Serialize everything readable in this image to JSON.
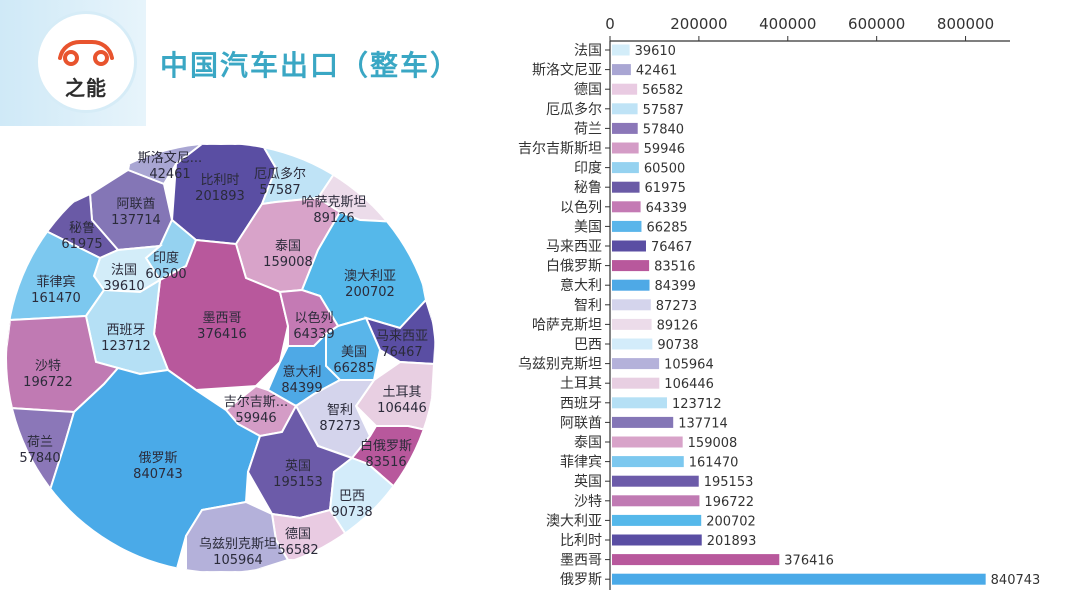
{
  "header": {
    "logo_text": "之能",
    "title": "中国汽车出口（整车）"
  },
  "colors": {
    "accent": "#3aa7c4",
    "header_band": "#cfe9f7"
  },
  "chart_data": [
    {
      "type": "voronoi-treemap",
      "title": "",
      "cells": [
        {
          "name": "斯洛文尼...",
          "value": 42461,
          "color": "#a9a6d3"
        },
        {
          "name": "比利时",
          "value": 201893,
          "color": "#5a4ea3"
        },
        {
          "name": "厄瓜多尔",
          "value": 57587,
          "color": "#bfe3f6"
        },
        {
          "name": "哈萨克斯坦",
          "value": 89126,
          "color": "#ecdcea"
        },
        {
          "name": "阿联酋",
          "value": 137714,
          "color": "#8476b6"
        },
        {
          "name": "秘鲁",
          "value": 61975,
          "color": "#6a5aa6"
        },
        {
          "name": "印度",
          "value": 60500,
          "color": "#95d2f0"
        },
        {
          "name": "泰国",
          "value": 159008,
          "color": "#d8a3c9"
        },
        {
          "name": "澳大利亚",
          "value": 200702,
          "color": "#55b8ea"
        },
        {
          "name": "法国",
          "value": 39610,
          "color": "#d3edf9"
        },
        {
          "name": "菲律宾",
          "value": 161470,
          "color": "#7cc8ef"
        },
        {
          "name": "墨西哥",
          "value": 376416,
          "color": "#b8589c"
        },
        {
          "name": "以色列",
          "value": 64339,
          "color": "#c47ab4"
        },
        {
          "name": "马来西亚",
          "value": 76467,
          "color": "#5a4ea3"
        },
        {
          "name": "西班牙",
          "value": 123712,
          "color": "#b5e0f5"
        },
        {
          "name": "美国",
          "value": 66285,
          "color": "#59b5ea"
        },
        {
          "name": "沙特",
          "value": 196722,
          "color": "#c07ab3"
        },
        {
          "name": "意大利",
          "value": 84399,
          "color": "#4ea9e6"
        },
        {
          "name": "土耳其",
          "value": 106446,
          "color": "#e8cfe2"
        },
        {
          "name": "吉尔吉斯...",
          "value": 59946,
          "color": "#d49cc6"
        },
        {
          "name": "智利",
          "value": 87273,
          "color": "#d4d4ec"
        },
        {
          "name": "荷兰",
          "value": 57840,
          "color": "#8b77b8"
        },
        {
          "name": "白俄罗斯",
          "value": 83516,
          "color": "#b8589c"
        },
        {
          "name": "俄罗斯",
          "value": 840743,
          "color": "#4aaae8"
        },
        {
          "name": "英国",
          "value": 195153,
          "color": "#6c5ba9"
        },
        {
          "name": "巴西",
          "value": 90738,
          "color": "#d3ecfa"
        },
        {
          "name": "德国",
          "value": 56582,
          "color": "#e9cbe2"
        },
        {
          "name": "乌兹别克斯坦",
          "value": 105964,
          "color": "#b4b1da"
        }
      ]
    },
    {
      "type": "bar",
      "orientation": "horizontal",
      "title": "",
      "xlim": [
        0,
        900000
      ],
      "xticks": [
        0,
        200000,
        400000,
        600000,
        800000
      ],
      "grid": false,
      "categories": [
        "法国",
        "斯洛文尼亚",
        "德国",
        "厄瓜多尔",
        "荷兰",
        "吉尔吉斯斯坦",
        "印度",
        "秘鲁",
        "以色列",
        "美国",
        "马来西亚",
        "白俄罗斯",
        "意大利",
        "智利",
        "哈萨克斯坦",
        "巴西",
        "乌兹别克斯坦",
        "土耳其",
        "西班牙",
        "阿联酋",
        "泰国",
        "菲律宾",
        "英国",
        "沙特",
        "澳大利亚",
        "比利时",
        "墨西哥",
        "俄罗斯"
      ],
      "values": [
        39610,
        42461,
        56582,
        57587,
        57840,
        59946,
        60500,
        61975,
        64339,
        66285,
        76467,
        83516,
        84399,
        87273,
        89126,
        90738,
        105964,
        106446,
        123712,
        137714,
        159008,
        161470,
        195153,
        196722,
        200702,
        201893,
        376416,
        840743
      ],
      "colors": [
        "#d3edf9",
        "#a9a6d3",
        "#e9cbe2",
        "#bfe3f6",
        "#8b77b8",
        "#d49cc6",
        "#95d2f0",
        "#6a5aa6",
        "#c47ab4",
        "#59b5ea",
        "#5a4ea3",
        "#b8589c",
        "#4ea9e6",
        "#d4d4ec",
        "#ecdcea",
        "#d3ecfa",
        "#b4b1da",
        "#e8cfe2",
        "#b5e0f5",
        "#8476b6",
        "#d8a3c9",
        "#7cc8ef",
        "#6c5ba9",
        "#c07ab3",
        "#55b8ea",
        "#5a4ea3",
        "#b8589c",
        "#4aaae8"
      ]
    }
  ]
}
